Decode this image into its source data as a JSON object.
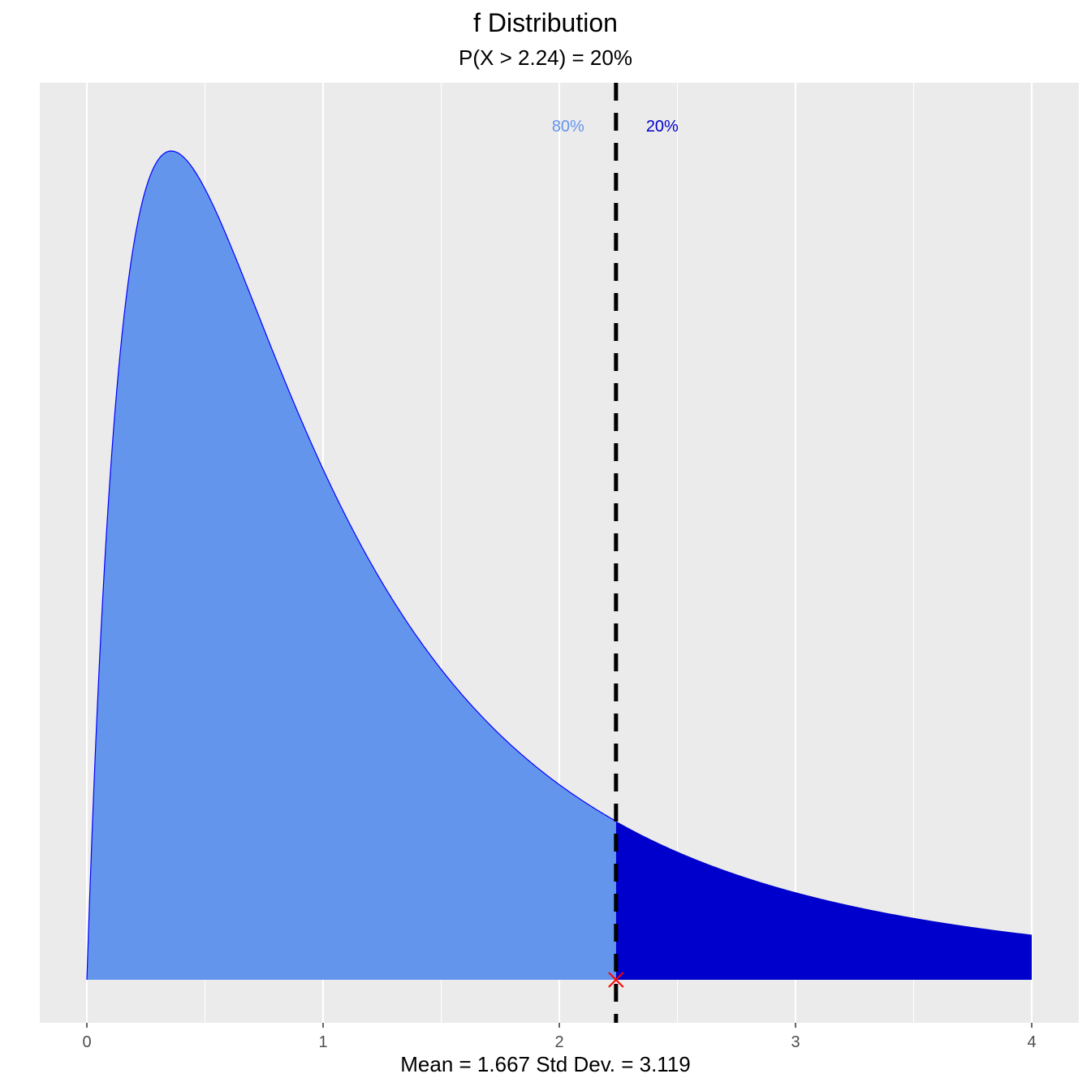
{
  "chart_data": {
    "type": "area",
    "title": "f Distribution",
    "subtitle": "P(X > 2.24) = 20%",
    "caption": "Mean = 1.667  Std Dev. = 3.119",
    "distribution": {
      "family": "f",
      "df1": 4,
      "df2": 5
    },
    "xlim": [
      0,
      4
    ],
    "x_ticks": [
      0,
      1,
      2,
      3,
      4
    ],
    "x_tick_labels": [
      "0",
      "1",
      "2",
      "3",
      "4"
    ],
    "y_ticks_shown": false,
    "grid": true,
    "cutoff": 2.24,
    "regions": [
      {
        "label": "80%",
        "from": 0,
        "to": 2.24,
        "probability": 0.8,
        "color": "#6495ED"
      },
      {
        "label": "20%",
        "from": 2.24,
        "to": 4,
        "probability": 0.2,
        "color": "#0000CD"
      }
    ],
    "outline_color": "#0000FF",
    "marker": {
      "x": 2.24,
      "y": 0,
      "symbol": "x",
      "color": "#FF0000"
    },
    "cutoff_line": {
      "x": 2.24,
      "style": "dashed",
      "color": "#000000"
    }
  }
}
